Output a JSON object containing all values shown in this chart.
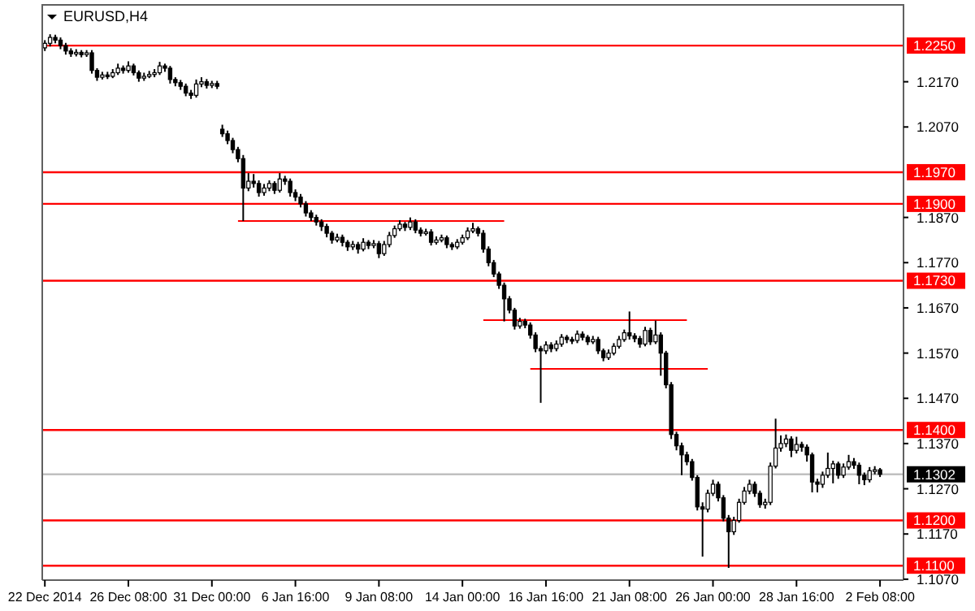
{
  "chart_data": {
    "type": "candlestick",
    "title": "EURUSD,H4",
    "categories": [
      "22 Dec 2014",
      null,
      null,
      null,
      null,
      null,
      null,
      null,
      null,
      null,
      null,
      null,
      null,
      null,
      null,
      null,
      "26 Dec 08:00",
      null,
      null,
      null,
      null,
      null,
      null,
      null,
      null,
      null,
      null,
      null,
      null,
      null,
      null,
      null,
      "31 Dec 00:00",
      null,
      null,
      null,
      null,
      null,
      null,
      null,
      null,
      null,
      null,
      null,
      null,
      null,
      null,
      null,
      "6 Jan 16:00",
      null,
      null,
      null,
      null,
      null,
      null,
      null,
      null,
      null,
      null,
      null,
      null,
      null,
      null,
      null,
      "9 Jan 08:00",
      null,
      null,
      null,
      null,
      null,
      null,
      null,
      null,
      null,
      null,
      null,
      null,
      null,
      null,
      null,
      "14 Jan 00:00",
      null,
      null,
      null,
      null,
      null,
      null,
      null,
      null,
      null,
      null,
      null,
      null,
      null,
      null,
      null,
      "16 Jan 16:00",
      null,
      null,
      null,
      null,
      null,
      null,
      null,
      null,
      null,
      null,
      null,
      null,
      null,
      null,
      null,
      "21 Jan 08:00",
      null,
      null,
      null,
      null,
      null,
      null,
      null,
      null,
      null,
      null,
      null,
      null,
      null,
      null,
      null,
      "26 Jan 00:00",
      null,
      null,
      null,
      null,
      null,
      null,
      null,
      null,
      null,
      null,
      null,
      null,
      null,
      null,
      null,
      "28 Jan 16:00",
      null,
      null,
      null,
      null,
      null,
      null,
      null,
      null,
      null,
      null,
      null,
      null,
      null,
      null,
      null,
      "2 Feb 08:00",
      null,
      null,
      null,
      null
    ],
    "ylim": [
      1.1068,
      1.234
    ],
    "yticks": [
      {
        "value": 1.217,
        "label": "1.2170"
      },
      {
        "value": 1.207,
        "label": "1.2070"
      },
      {
        "value": 1.187,
        "label": "1.1870"
      },
      {
        "value": 1.177,
        "label": "1.1770"
      },
      {
        "value": 1.167,
        "label": "1.1670"
      },
      {
        "value": 1.157,
        "label": "1.1570"
      },
      {
        "value": 1.147,
        "label": "1.1470"
      },
      {
        "value": 1.137,
        "label": "1.1370"
      },
      {
        "value": 1.127,
        "label": "1.1270"
      },
      {
        "value": 1.117,
        "label": "1.1170"
      },
      {
        "value": 1.107,
        "label": "1.1070"
      }
    ],
    "ref_lines": [
      {
        "axis": "y",
        "value": 1.225,
        "label": "1.2250",
        "color": "#ff0000"
      },
      {
        "axis": "y",
        "value": 1.197,
        "label": "1.1970",
        "color": "#ff0000"
      },
      {
        "axis": "y",
        "value": 1.19,
        "label": "1.1900",
        "color": "#ff0000"
      },
      {
        "axis": "y",
        "value": 1.173,
        "label": "1.1730",
        "color": "#ff0000"
      },
      {
        "axis": "y",
        "value": 1.14,
        "label": "1.1400",
        "color": "#ff0000"
      },
      {
        "axis": "y",
        "value": 1.12,
        "label": "1.1200",
        "color": "#ff0000"
      },
      {
        "axis": "y",
        "value": 1.11,
        "label": "1.1100",
        "color": "#ff0000"
      },
      {
        "axis": "y",
        "value": 1.1302,
        "label": "1.1302",
        "color": "#c0c0c0"
      }
    ],
    "series": [
      {
        "type": "line",
        "color": "#ff0000",
        "values": [
          null,
          null,
          null,
          null,
          null,
          null,
          null,
          null,
          null,
          null,
          null,
          null,
          null,
          null,
          null,
          null,
          null,
          null,
          null,
          null,
          null,
          null,
          null,
          null,
          null,
          null,
          null,
          null,
          null,
          null,
          null,
          null,
          null,
          null,
          null,
          null,
          null,
          1.1862,
          1.1862,
          1.1862,
          1.1862,
          1.1862,
          1.1862,
          1.1862,
          1.1862,
          1.1862,
          1.1862,
          1.1862,
          1.1862,
          1.1862,
          1.1862,
          1.1862,
          1.1862,
          1.1862,
          1.1862,
          1.1862,
          1.1862,
          1.1862,
          1.1862,
          1.1862,
          1.1862,
          1.1862,
          1.1862,
          1.1862,
          1.1862,
          1.1862,
          1.1862,
          1.1862,
          1.1862,
          1.1862,
          1.1862,
          1.1862,
          1.1862,
          1.1862,
          1.1862,
          1.1862,
          1.1862,
          1.1862,
          1.1862,
          1.1862,
          1.1862,
          1.1862,
          1.1862,
          1.1862,
          1.1862,
          1.1862,
          1.1862,
          1.1862,
          1.1862,
          null,
          null,
          null,
          null,
          null,
          null,
          null,
          null,
          null,
          null,
          null,
          null,
          null,
          null,
          null,
          null,
          null,
          null,
          null,
          null,
          null,
          null,
          null,
          null,
          null,
          null,
          null,
          null,
          null,
          null,
          null,
          null,
          null,
          null,
          null,
          null,
          null,
          null,
          null,
          null,
          null,
          null,
          null,
          null,
          null,
          null,
          null,
          null,
          null,
          null,
          null,
          null,
          null,
          null,
          null,
          null,
          null,
          null,
          null,
          null,
          null,
          null,
          null,
          null,
          null,
          null,
          null,
          null,
          null,
          null,
          null,
          null,
          null,
          null,
          null,
          null
        ]
      },
      {
        "type": "line",
        "color": "#ff0000",
        "values": [
          null,
          null,
          null,
          null,
          null,
          null,
          null,
          null,
          null,
          null,
          null,
          null,
          null,
          null,
          null,
          null,
          null,
          null,
          null,
          null,
          null,
          null,
          null,
          null,
          null,
          null,
          null,
          null,
          null,
          null,
          null,
          null,
          null,
          null,
          null,
          null,
          null,
          null,
          null,
          null,
          null,
          null,
          null,
          null,
          null,
          null,
          null,
          null,
          null,
          null,
          null,
          null,
          null,
          null,
          null,
          null,
          null,
          null,
          null,
          null,
          null,
          null,
          null,
          null,
          null,
          null,
          null,
          null,
          null,
          null,
          null,
          null,
          null,
          null,
          null,
          null,
          null,
          null,
          null,
          null,
          null,
          null,
          null,
          null,
          1.1643,
          1.1643,
          1.1643,
          1.1643,
          1.1643,
          1.1643,
          1.1643,
          1.1643,
          1.1643,
          1.1643,
          1.1643,
          1.1643,
          1.1643,
          1.1643,
          1.1643,
          1.1643,
          1.1643,
          1.1643,
          1.1643,
          1.1643,
          1.1643,
          1.1643,
          1.1643,
          1.1643,
          1.1643,
          1.1643,
          1.1643,
          1.1643,
          1.1643,
          1.1643,
          1.1643,
          1.1643,
          1.1643,
          1.1643,
          1.1643,
          1.1643,
          1.1643,
          1.1643,
          1.1643,
          1.1643,
          null,
          null,
          null,
          null,
          null,
          null,
          null,
          null,
          null,
          null,
          null,
          null,
          null,
          null,
          null,
          null,
          null,
          null,
          null,
          null,
          null,
          null,
          null,
          null,
          null,
          null,
          null,
          null,
          null,
          null,
          null,
          null,
          null,
          null,
          null,
          null,
          null,
          null,
          null,
          null,
          null
        ]
      },
      {
        "type": "line",
        "color": "#ff0000",
        "values": [
          null,
          null,
          null,
          null,
          null,
          null,
          null,
          null,
          null,
          null,
          null,
          null,
          null,
          null,
          null,
          null,
          null,
          null,
          null,
          null,
          null,
          null,
          null,
          null,
          null,
          null,
          null,
          null,
          null,
          null,
          null,
          null,
          null,
          null,
          null,
          null,
          null,
          null,
          null,
          null,
          null,
          null,
          null,
          null,
          null,
          null,
          null,
          null,
          null,
          null,
          null,
          null,
          null,
          null,
          null,
          null,
          null,
          null,
          null,
          null,
          null,
          null,
          null,
          null,
          null,
          null,
          null,
          null,
          null,
          null,
          null,
          null,
          null,
          null,
          null,
          null,
          null,
          null,
          null,
          null,
          null,
          null,
          null,
          null,
          null,
          null,
          null,
          null,
          null,
          null,
          null,
          null,
          null,
          1.1535,
          1.1535,
          1.1535,
          1.1535,
          1.1535,
          1.1535,
          1.1535,
          1.1535,
          1.1535,
          1.1535,
          1.1535,
          1.1535,
          1.1535,
          1.1535,
          1.1535,
          1.1535,
          1.1535,
          1.1535,
          1.1535,
          1.1535,
          1.1535,
          1.1535,
          1.1535,
          1.1535,
          1.1535,
          1.1535,
          1.1535,
          1.1535,
          1.1535,
          1.1535,
          1.1535,
          1.1535,
          1.1535,
          1.1535,
          1.1535,
          null,
          null,
          null,
          null,
          null,
          null,
          null,
          null,
          null,
          null,
          null,
          null,
          null,
          null,
          null,
          null,
          null,
          null,
          null,
          null,
          null,
          null,
          null,
          null,
          null,
          null,
          null,
          null,
          null,
          null,
          null,
          null,
          null,
          null,
          null,
          null,
          null
        ]
      },
      {
        "color": "#000000",
        "ohlc": [
          [
            1.2245,
            1.2262,
            1.2238,
            1.2255
          ],
          [
            1.2255,
            1.2275,
            1.2248,
            1.2268
          ],
          [
            1.2268,
            1.2274,
            1.2255,
            1.2262
          ],
          [
            1.2262,
            1.2268,
            1.2242,
            1.225
          ],
          [
            1.225,
            1.2256,
            1.223,
            1.2238
          ],
          [
            1.2238,
            1.2244,
            1.2225,
            1.2232
          ],
          [
            1.2232,
            1.2242,
            1.2226,
            1.2235
          ],
          [
            1.2235,
            1.224,
            1.2224,
            1.223
          ],
          [
            1.223,
            1.224,
            1.2225,
            1.2234
          ],
          [
            1.2234,
            1.224,
            1.2188,
            1.2195
          ],
          [
            1.2195,
            1.22,
            1.2172,
            1.218
          ],
          [
            1.218,
            1.2192,
            1.2175,
            1.2185
          ],
          [
            1.2185,
            1.2192,
            1.2176,
            1.2182
          ],
          [
            1.2182,
            1.2198,
            1.2178,
            1.219
          ],
          [
            1.219,
            1.221,
            1.2185,
            1.22
          ],
          [
            1.22,
            1.2206,
            1.2188,
            1.2195
          ],
          [
            1.2195,
            1.2215,
            1.219,
            1.2205
          ],
          [
            1.2205,
            1.221,
            1.2184,
            1.219
          ],
          [
            1.219,
            1.2195,
            1.217,
            1.2178
          ],
          [
            1.2178,
            1.219,
            1.2172,
            1.2182
          ],
          [
            1.2182,
            1.2194,
            1.2178,
            1.2186
          ],
          [
            1.2186,
            1.2198,
            1.218,
            1.219
          ],
          [
            1.219,
            1.2214,
            1.2185,
            1.2205
          ],
          [
            1.2205,
            1.221,
            1.2192,
            1.22
          ],
          [
            1.22,
            1.2205,
            1.2166,
            1.2175
          ],
          [
            1.2175,
            1.218,
            1.216,
            1.2168
          ],
          [
            1.2168,
            1.2174,
            1.2152,
            1.216
          ],
          [
            1.216,
            1.2166,
            1.2138,
            1.2145
          ],
          [
            1.2145,
            1.2152,
            1.2132,
            1.214
          ],
          [
            1.214,
            1.2175,
            1.2135,
            1.2165
          ],
          [
            1.2165,
            1.218,
            1.2158,
            1.217
          ],
          [
            1.217,
            1.2176,
            1.2155,
            1.2162
          ],
          [
            1.2162,
            1.2172,
            1.2156,
            1.2166
          ],
          [
            1.2166,
            1.2172,
            1.2154,
            1.216
          ],
          [
            1.2065,
            1.2075,
            1.2048,
            1.2055
          ],
          [
            1.2055,
            1.2062,
            1.2032,
            1.204
          ],
          [
            1.204,
            1.2046,
            1.2012,
            1.202
          ],
          [
            1.202,
            1.2026,
            1.1992,
            1.2
          ],
          [
            1.2,
            1.2008,
            1.1862,
            1.1935
          ],
          [
            1.1935,
            1.1968,
            1.1928,
            1.195
          ],
          [
            1.195,
            1.1966,
            1.1936,
            1.1945
          ],
          [
            1.1945,
            1.1952,
            1.1916,
            1.1925
          ],
          [
            1.1925,
            1.1944,
            1.1918,
            1.1935
          ],
          [
            1.1935,
            1.1952,
            1.1928,
            1.1945
          ],
          [
            1.1945,
            1.195,
            1.1922,
            1.193
          ],
          [
            1.193,
            1.1968,
            1.1925,
            1.1955
          ],
          [
            1.1955,
            1.1962,
            1.1942,
            1.195
          ],
          [
            1.195,
            1.1956,
            1.1916,
            1.1925
          ],
          [
            1.1925,
            1.1932,
            1.1906,
            1.1915
          ],
          [
            1.1915,
            1.1922,
            1.1892,
            1.19
          ],
          [
            1.19,
            1.1906,
            1.1872,
            1.188
          ],
          [
            1.188,
            1.1886,
            1.1862,
            1.187
          ],
          [
            1.187,
            1.1876,
            1.1852,
            1.186
          ],
          [
            1.186,
            1.1866,
            1.184,
            1.185
          ],
          [
            1.185,
            1.1856,
            1.1826,
            1.1835
          ],
          [
            1.1835,
            1.184,
            1.1812,
            1.182
          ],
          [
            1.182,
            1.1834,
            1.1815,
            1.1826
          ],
          [
            1.1826,
            1.1832,
            1.1806,
            1.1815
          ],
          [
            1.1815,
            1.182,
            1.1796,
            1.1805
          ],
          [
            1.1805,
            1.1818,
            1.1798,
            1.181
          ],
          [
            1.181,
            1.1816,
            1.179,
            1.18
          ],
          [
            1.18,
            1.1824,
            1.1795,
            1.1815
          ],
          [
            1.1815,
            1.182,
            1.18,
            1.1808
          ],
          [
            1.1808,
            1.182,
            1.1802,
            1.1812
          ],
          [
            1.1812,
            1.1818,
            1.178,
            1.179
          ],
          [
            1.179,
            1.1818,
            1.1785,
            1.181
          ],
          [
            1.181,
            1.1838,
            1.1804,
            1.183
          ],
          [
            1.183,
            1.1852,
            1.1825,
            1.1845
          ],
          [
            1.1845,
            1.1864,
            1.184,
            1.1855
          ],
          [
            1.1855,
            1.186,
            1.184,
            1.1848
          ],
          [
            1.1848,
            1.187,
            1.1842,
            1.186
          ],
          [
            1.186,
            1.1866,
            1.1835,
            1.1842
          ],
          [
            1.1842,
            1.1848,
            1.1828,
            1.1835
          ],
          [
            1.1835,
            1.1845,
            1.183,
            1.1838
          ],
          [
            1.1838,
            1.1844,
            1.1808,
            1.1815
          ],
          [
            1.1815,
            1.1828,
            1.181,
            1.182
          ],
          [
            1.182,
            1.1832,
            1.1815,
            1.1825
          ],
          [
            1.1825,
            1.183,
            1.1802,
            1.181
          ],
          [
            1.181,
            1.1815,
            1.1798,
            1.1805
          ],
          [
            1.1805,
            1.1822,
            1.18,
            1.1815
          ],
          [
            1.1815,
            1.1832,
            1.181,
            1.1825
          ],
          [
            1.1825,
            1.1848,
            1.182,
            1.184
          ],
          [
            1.184,
            1.1858,
            1.1835,
            1.1845
          ],
          [
            1.1845,
            1.185,
            1.1828,
            1.1835
          ],
          [
            1.1835,
            1.1842,
            1.1792,
            1.18
          ],
          [
            1.18,
            1.1806,
            1.1762,
            1.177
          ],
          [
            1.177,
            1.1776,
            1.1738,
            1.1745
          ],
          [
            1.1745,
            1.175,
            1.1712,
            1.172
          ],
          [
            1.172,
            1.1726,
            1.164,
            1.169
          ],
          [
            1.169,
            1.1696,
            1.1658,
            1.1665
          ],
          [
            1.1665,
            1.167,
            1.1622,
            1.163
          ],
          [
            1.163,
            1.1648,
            1.1624,
            1.164
          ],
          [
            1.164,
            1.1646,
            1.1625,
            1.1632
          ],
          [
            1.1632,
            1.1638,
            1.1602,
            1.161
          ],
          [
            1.161,
            1.1616,
            1.1572,
            1.158
          ],
          [
            1.158,
            1.1586,
            1.146,
            1.1575
          ],
          [
            1.1575,
            1.1596,
            1.1568,
            1.1588
          ],
          [
            1.1588,
            1.1594,
            1.1572,
            1.158
          ],
          [
            1.158,
            1.1598,
            1.1574,
            1.159
          ],
          [
            1.159,
            1.1612,
            1.1584,
            1.1605
          ],
          [
            1.1605,
            1.161,
            1.1592,
            1.16
          ],
          [
            1.16,
            1.1606,
            1.159,
            1.1598
          ],
          [
            1.1598,
            1.162,
            1.1592,
            1.1612
          ],
          [
            1.1612,
            1.1618,
            1.1598,
            1.1605
          ],
          [
            1.1605,
            1.161,
            1.1588,
            1.1595
          ],
          [
            1.1595,
            1.1608,
            1.159,
            1.16
          ],
          [
            1.16,
            1.1606,
            1.1568,
            1.1575
          ],
          [
            1.1575,
            1.158,
            1.1552,
            1.156
          ],
          [
            1.156,
            1.1578,
            1.1555,
            1.157
          ],
          [
            1.157,
            1.1592,
            1.1565,
            1.1585
          ],
          [
            1.1585,
            1.1608,
            1.158,
            1.16
          ],
          [
            1.16,
            1.1622,
            1.1595,
            1.1615
          ],
          [
            1.1615,
            1.1662,
            1.16,
            1.1608
          ],
          [
            1.1608,
            1.1614,
            1.1594,
            1.1602
          ],
          [
            1.1602,
            1.1608,
            1.1582,
            1.159
          ],
          [
            1.159,
            1.1628,
            1.1585,
            1.162
          ],
          [
            1.162,
            1.1626,
            1.1588,
            1.1595
          ],
          [
            1.1595,
            1.1642,
            1.159,
            1.161
          ],
          [
            1.161,
            1.1616,
            1.152,
            1.157
          ],
          [
            1.157,
            1.1575,
            1.1492,
            1.15
          ],
          [
            1.15,
            1.1506,
            1.138,
            1.139
          ],
          [
            1.139,
            1.1396,
            1.1355,
            1.1365
          ],
          [
            1.1365,
            1.1372,
            1.13,
            1.1345
          ],
          [
            1.1345,
            1.1352,
            1.1322,
            1.133
          ],
          [
            1.133,
            1.1336,
            1.1288,
            1.1295
          ],
          [
            1.1295,
            1.13,
            1.1222,
            1.123
          ],
          [
            1.123,
            1.124,
            1.112,
            1.1225
          ],
          [
            1.1225,
            1.1268,
            1.1218,
            1.126
          ],
          [
            1.126,
            1.129,
            1.1254,
            1.128
          ],
          [
            1.128,
            1.1286,
            1.1242,
            1.125
          ],
          [
            1.125,
            1.1256,
            1.1198,
            1.1205
          ],
          [
            1.1205,
            1.1212,
            1.1095,
            1.1175
          ],
          [
            1.1175,
            1.1208,
            1.1168,
            1.12
          ],
          [
            1.12,
            1.1248,
            1.1195,
            1.124
          ],
          [
            1.124,
            1.1274,
            1.1235,
            1.1265
          ],
          [
            1.1265,
            1.129,
            1.1258,
            1.128
          ],
          [
            1.128,
            1.1286,
            1.1252,
            1.126
          ],
          [
            1.126,
            1.1266,
            1.1228,
            1.1235
          ],
          [
            1.1235,
            1.1248,
            1.1226,
            1.124
          ],
          [
            1.124,
            1.1328,
            1.1234,
            1.132
          ],
          [
            1.132,
            1.1425,
            1.1315,
            1.136
          ],
          [
            1.136,
            1.1388,
            1.1352,
            1.137
          ],
          [
            1.137,
            1.139,
            1.1362,
            1.138
          ],
          [
            1.138,
            1.1386,
            1.134,
            1.1355
          ],
          [
            1.1355,
            1.1385,
            1.1348,
            1.1368
          ],
          [
            1.1368,
            1.1374,
            1.1352,
            1.1362
          ],
          [
            1.1362,
            1.1368,
            1.133,
            1.1345
          ],
          [
            1.1345,
            1.135,
            1.1262,
            1.1285
          ],
          [
            1.1285,
            1.1292,
            1.1262,
            1.128
          ],
          [
            1.128,
            1.1308,
            1.1272,
            1.13
          ],
          [
            1.13,
            1.135,
            1.1294,
            1.1315
          ],
          [
            1.1315,
            1.1332,
            1.1282,
            1.1325
          ],
          [
            1.1325,
            1.133,
            1.1292,
            1.13
          ],
          [
            1.13,
            1.1326,
            1.1294,
            1.1318
          ],
          [
            1.1318,
            1.1345,
            1.1312,
            1.133
          ],
          [
            1.133,
            1.1338,
            1.1314,
            1.1322
          ],
          [
            1.1322,
            1.1328,
            1.128,
            1.13
          ],
          [
            1.13,
            1.1306,
            1.1278,
            1.129
          ],
          [
            1.129,
            1.1318,
            1.1284,
            1.131
          ],
          [
            1.131,
            1.132,
            1.1302,
            1.1312
          ],
          [
            1.1312,
            1.1316,
            1.1296,
            1.1302
          ],
          null,
          null,
          null,
          null
        ]
      }
    ]
  }
}
